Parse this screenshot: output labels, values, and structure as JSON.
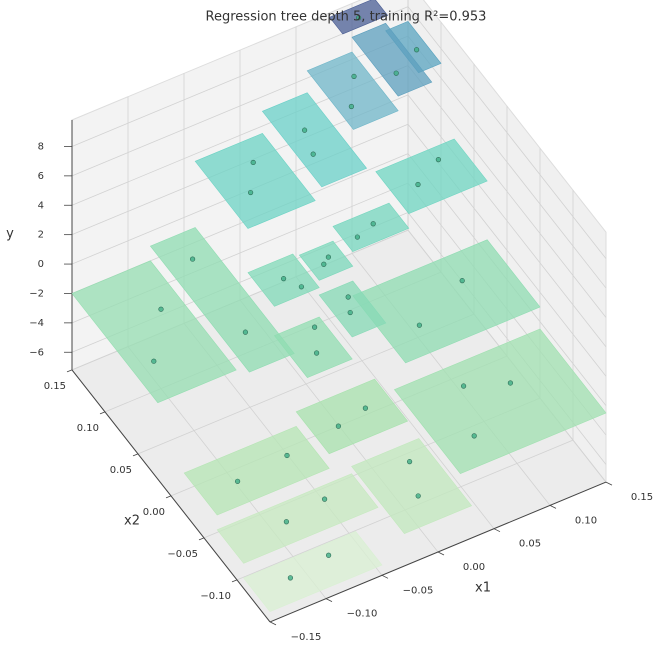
{
  "chart_data": {
    "type": "tree3d",
    "title": "Regression tree depth 5, training R²=0.953",
    "x1_label": "x1",
    "x2_label": "x2",
    "y_label": "y",
    "x1lim": [
      -0.15,
      0.15
    ],
    "x2lim": [
      -0.15,
      0.15
    ],
    "ylim": [
      -7.2,
      9.8
    ],
    "x1ticks": [
      {
        "value": -0.15,
        "label": "−0.15"
      },
      {
        "value": -0.1,
        "label": "−0.10"
      },
      {
        "value": -0.05,
        "label": "−0.05"
      },
      {
        "value": 0,
        "label": "0.00"
      },
      {
        "value": 0.05,
        "label": "0.05"
      },
      {
        "value": 0.1,
        "label": "0.10"
      },
      {
        "value": 0.15,
        "label": "0.15"
      }
    ],
    "x2ticks": [
      {
        "value": -0.1,
        "label": "−0.10"
      },
      {
        "value": -0.05,
        "label": "−0.05"
      },
      {
        "value": 0,
        "label": "0.00"
      },
      {
        "value": 0.05,
        "label": "0.05"
      },
      {
        "value": 0.1,
        "label": "0.10"
      },
      {
        "value": 0.15,
        "label": "0.15"
      }
    ],
    "yticks": [
      {
        "value": -6,
        "label": "−6"
      },
      {
        "value": -4,
        "label": "−4"
      },
      {
        "value": -2,
        "label": "−2"
      },
      0,
      2,
      4,
      6,
      8
    ],
    "grid": true,
    "leaves": [
      {
        "x1": [
          -0.15,
          -0.05
        ],
        "x2": [
          -0.15,
          -0.11
        ],
        "value": -6.5,
        "color": "#d9f0d3"
      },
      {
        "x1": [
          -0.15,
          -0.03
        ],
        "x2": [
          -0.11,
          -0.07
        ],
        "value": -5.5,
        "color": "#c7e9c0"
      },
      {
        "x1": [
          -0.03,
          0.03
        ],
        "x2": [
          -0.15,
          -0.07
        ],
        "value": -5,
        "color": "#c2e8bd"
      },
      {
        "x1": [
          -0.15,
          -0.05
        ],
        "x2": [
          -0.07,
          -0.02
        ],
        "value": -4.5,
        "color": "#b5e5b4"
      },
      {
        "x1": [
          -0.05,
          0.02
        ],
        "x2": [
          -0.07,
          -0.02
        ],
        "value": -3.5,
        "color": "#a8e2ae"
      },
      {
        "x1": [
          0.02,
          0.15
        ],
        "x2": [
          -0.15,
          -0.05
        ],
        "value": -2.5,
        "color": "#a0e0b0"
      },
      {
        "x1": [
          0.03,
          0.15
        ],
        "x2": [
          -0.05,
          0.03
        ],
        "value": -1,
        "color": "#8fdcb2"
      },
      {
        "x1": [
          -0.15,
          -0.08
        ],
        "x2": [
          0.02,
          0.15
        ],
        "value": -2,
        "color": "#95deb1"
      },
      {
        "x1": [
          -0.08,
          -0.04
        ],
        "x2": [
          0,
          0.15
        ],
        "value": -1,
        "color": "#8fdcb2"
      },
      {
        "x1": [
          -0.04,
          0
        ],
        "x2": [
          -0.02,
          0.03
        ],
        "value": -1.5,
        "color": "#92ddb1"
      },
      {
        "x1": [
          0,
          0.03
        ],
        "x2": [
          -0.02,
          0.03
        ],
        "value": 0,
        "color": "#86dab6"
      },
      {
        "x1": [
          -0.04,
          0
        ],
        "x2": [
          0.03,
          0.07
        ],
        "value": 0.5,
        "color": "#80d9b8"
      },
      {
        "x1": [
          0,
          0.03
        ],
        "x2": [
          0.03,
          0.06
        ],
        "value": 1,
        "color": "#7bd8bb"
      },
      {
        "x1": [
          0.03,
          0.08
        ],
        "x2": [
          0.03,
          0.06
        ],
        "value": 2,
        "color": "#74d6be"
      },
      {
        "x1": [
          0.08,
          0.15
        ],
        "x2": [
          0.03,
          0.08
        ],
        "value": 3,
        "color": "#6fd5c2"
      },
      {
        "x1": [
          -0.04,
          0.02
        ],
        "x2": [
          0.07,
          0.15
        ],
        "value": 3.5,
        "color": "#6cd3c4"
      },
      {
        "x1": [
          0.02,
          0.06
        ],
        "x2": [
          0.06,
          0.15
        ],
        "value": 5,
        "color": "#6ad0c8"
      },
      {
        "x1": [
          0.06,
          0.1
        ],
        "x2": [
          0.08,
          0.15
        ],
        "value": 6.5,
        "color": "#6fb6c8"
      },
      {
        "x1": [
          0.1,
          0.13
        ],
        "x2": [
          0.08,
          0.15
        ],
        "value": 7.5,
        "color": "#5c9fbd"
      },
      {
        "x1": [
          0.13,
          0.15
        ],
        "x2": [
          0.1,
          0.15
        ],
        "value": 7,
        "color": "#5aa4c0"
      },
      {
        "x1": [
          0.08,
          0.12
        ],
        "x2": [
          0.13,
          0.15
        ],
        "value": 9.5,
        "color": "#4a5d94"
      }
    ],
    "points": {
      "color": "#3fae86",
      "x1": [
        -0.12,
        -0.08,
        -0.1,
        -0.06,
        0,
        0.01,
        -0.12,
        -0.07,
        -0.03,
        0,
        0.05,
        0.1,
        0.07,
        0.06,
        0.11,
        -0.13,
        -0.1,
        -0.06,
        -0.06,
        -0.02,
        -0.01,
        0.01,
        0.02,
        -0.02,
        -0.01,
        0.01,
        0.02,
        0.04,
        0.06,
        0.1,
        0.13,
        -0.02,
        0,
        0.03,
        0.04,
        0.07,
        0.09,
        0.11,
        0.14,
        0.1
      ],
      "x2": [
        -0.13,
        -0.12,
        -0.09,
        -0.08,
        -0.12,
        -0.09,
        -0.05,
        -0.04,
        -0.05,
        -0.04,
        -0.12,
        -0.09,
        -0.07,
        -0.02,
        0,
        0.06,
        0.1,
        0.04,
        0.12,
        0,
        0.02,
        0,
        0.02,
        0.05,
        0.04,
        0.04,
        0.05,
        0.04,
        0.05,
        0.05,
        0.07,
        0.1,
        0.13,
        0.09,
        0.12,
        0.1,
        0.13,
        0.1,
        0.12,
        0.14
      ],
      "y": [
        -6.3,
        -6.6,
        -5.4,
        -5.7,
        -5.1,
        -4.8,
        -4.3,
        -4.7,
        -3.4,
        -3.7,
        -2.6,
        -2.3,
        -2.7,
        -1.1,
        -0.8,
        -2.1,
        -1.8,
        -1.2,
        -0.8,
        -1.6,
        -1.3,
        0.2,
        -0.2,
        0.6,
        0.3,
        1.2,
        0.8,
        2.1,
        1.8,
        3.2,
        2.8,
        3.6,
        3.3,
        5.2,
        4.8,
        6.6,
        6.3,
        7.6,
        7.1,
        9.4
      ]
    }
  }
}
